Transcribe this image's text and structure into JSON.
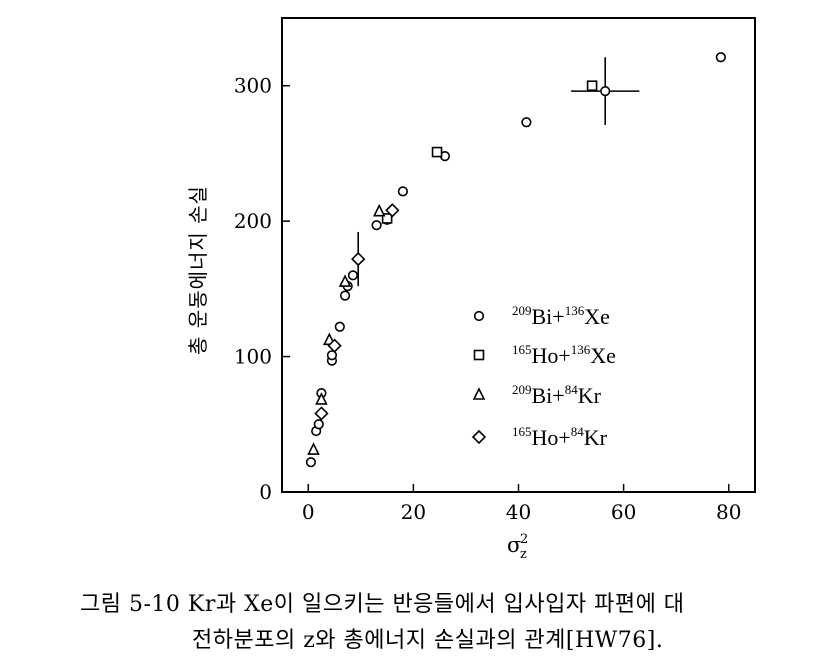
{
  "chart_data": {
    "type": "scatter",
    "title": "",
    "xlabel": "σ",
    "xlabel_sub": "z",
    "xlabel_sup": "2",
    "ylabel": "총 운동에너지 손실",
    "xlim": [
      -5,
      85
    ],
    "ylim": [
      0,
      350
    ],
    "x_ticks": [
      0,
      20,
      40,
      60,
      80
    ],
    "y_ticks": [
      0,
      100,
      200,
      300
    ],
    "x_tick_labels": [
      "0",
      "20",
      "40",
      "60",
      "80"
    ],
    "y_tick_labels": [
      "0",
      "100",
      "200",
      "300"
    ],
    "grid": false,
    "legend_position": "center-right",
    "series": [
      {
        "name_parts": [
          {
            "t": "209",
            "sup": true
          },
          {
            "t": "Bi+",
            "sup": false
          },
          {
            "t": "136",
            "sup": true
          },
          {
            "t": "Xe",
            "sup": false
          }
        ],
        "marker": "circle",
        "points": [
          [
            0.5,
            22
          ],
          [
            1.5,
            45
          ],
          [
            2.0,
            50
          ],
          [
            2.5,
            73
          ],
          [
            4.5,
            97
          ],
          [
            4.5,
            101
          ],
          [
            6.0,
            122
          ],
          [
            7.0,
            145
          ],
          [
            7.5,
            152
          ],
          [
            8.5,
            160
          ],
          [
            13.0,
            197
          ],
          [
            15.0,
            201
          ],
          [
            18.0,
            222
          ],
          [
            26.0,
            248
          ],
          [
            41.5,
            273
          ],
          [
            56.5,
            296
          ],
          [
            78.5,
            321
          ]
        ]
      },
      {
        "name_parts": [
          {
            "t": "165",
            "sup": true
          },
          {
            "t": "Ho+",
            "sup": false
          },
          {
            "t": "136",
            "sup": true
          },
          {
            "t": "Xe",
            "sup": false
          }
        ],
        "marker": "square",
        "points": [
          [
            15.0,
            202
          ],
          [
            24.5,
            251
          ],
          [
            54.0,
            300
          ]
        ]
      },
      {
        "name_parts": [
          {
            "t": "209",
            "sup": true
          },
          {
            "t": "Bi+",
            "sup": false
          },
          {
            "t": "84",
            "sup": true
          },
          {
            "t": "Kr",
            "sup": false
          }
        ],
        "marker": "triangle",
        "points": [
          [
            1.0,
            31
          ],
          [
            2.5,
            68
          ],
          [
            4.0,
            112
          ],
          [
            7.0,
            155
          ],
          [
            13.5,
            207
          ]
        ]
      },
      {
        "name_parts": [
          {
            "t": "165",
            "sup": true
          },
          {
            "t": "Ho+",
            "sup": false
          },
          {
            "t": "84",
            "sup": true
          },
          {
            "t": "Kr",
            "sup": false
          }
        ],
        "marker": "diamond",
        "points": [
          [
            2.5,
            58
          ],
          [
            5.0,
            108
          ],
          [
            9.5,
            172
          ],
          [
            16.0,
            208
          ]
        ]
      }
    ],
    "error_bars": [
      {
        "x": 9.5,
        "y": 172,
        "y_err": 20
      },
      {
        "x": 56.5,
        "y": 296,
        "x_err": 6.5,
        "y_err": 25
      }
    ]
  },
  "caption": {
    "line1": "그림 5-10 Kr과 Xe이 일으키는 반응들에서 입사입자 파편에 대",
    "line2": "전하분포의 z와 총에너지 손실과의 관계[HW76]."
  }
}
